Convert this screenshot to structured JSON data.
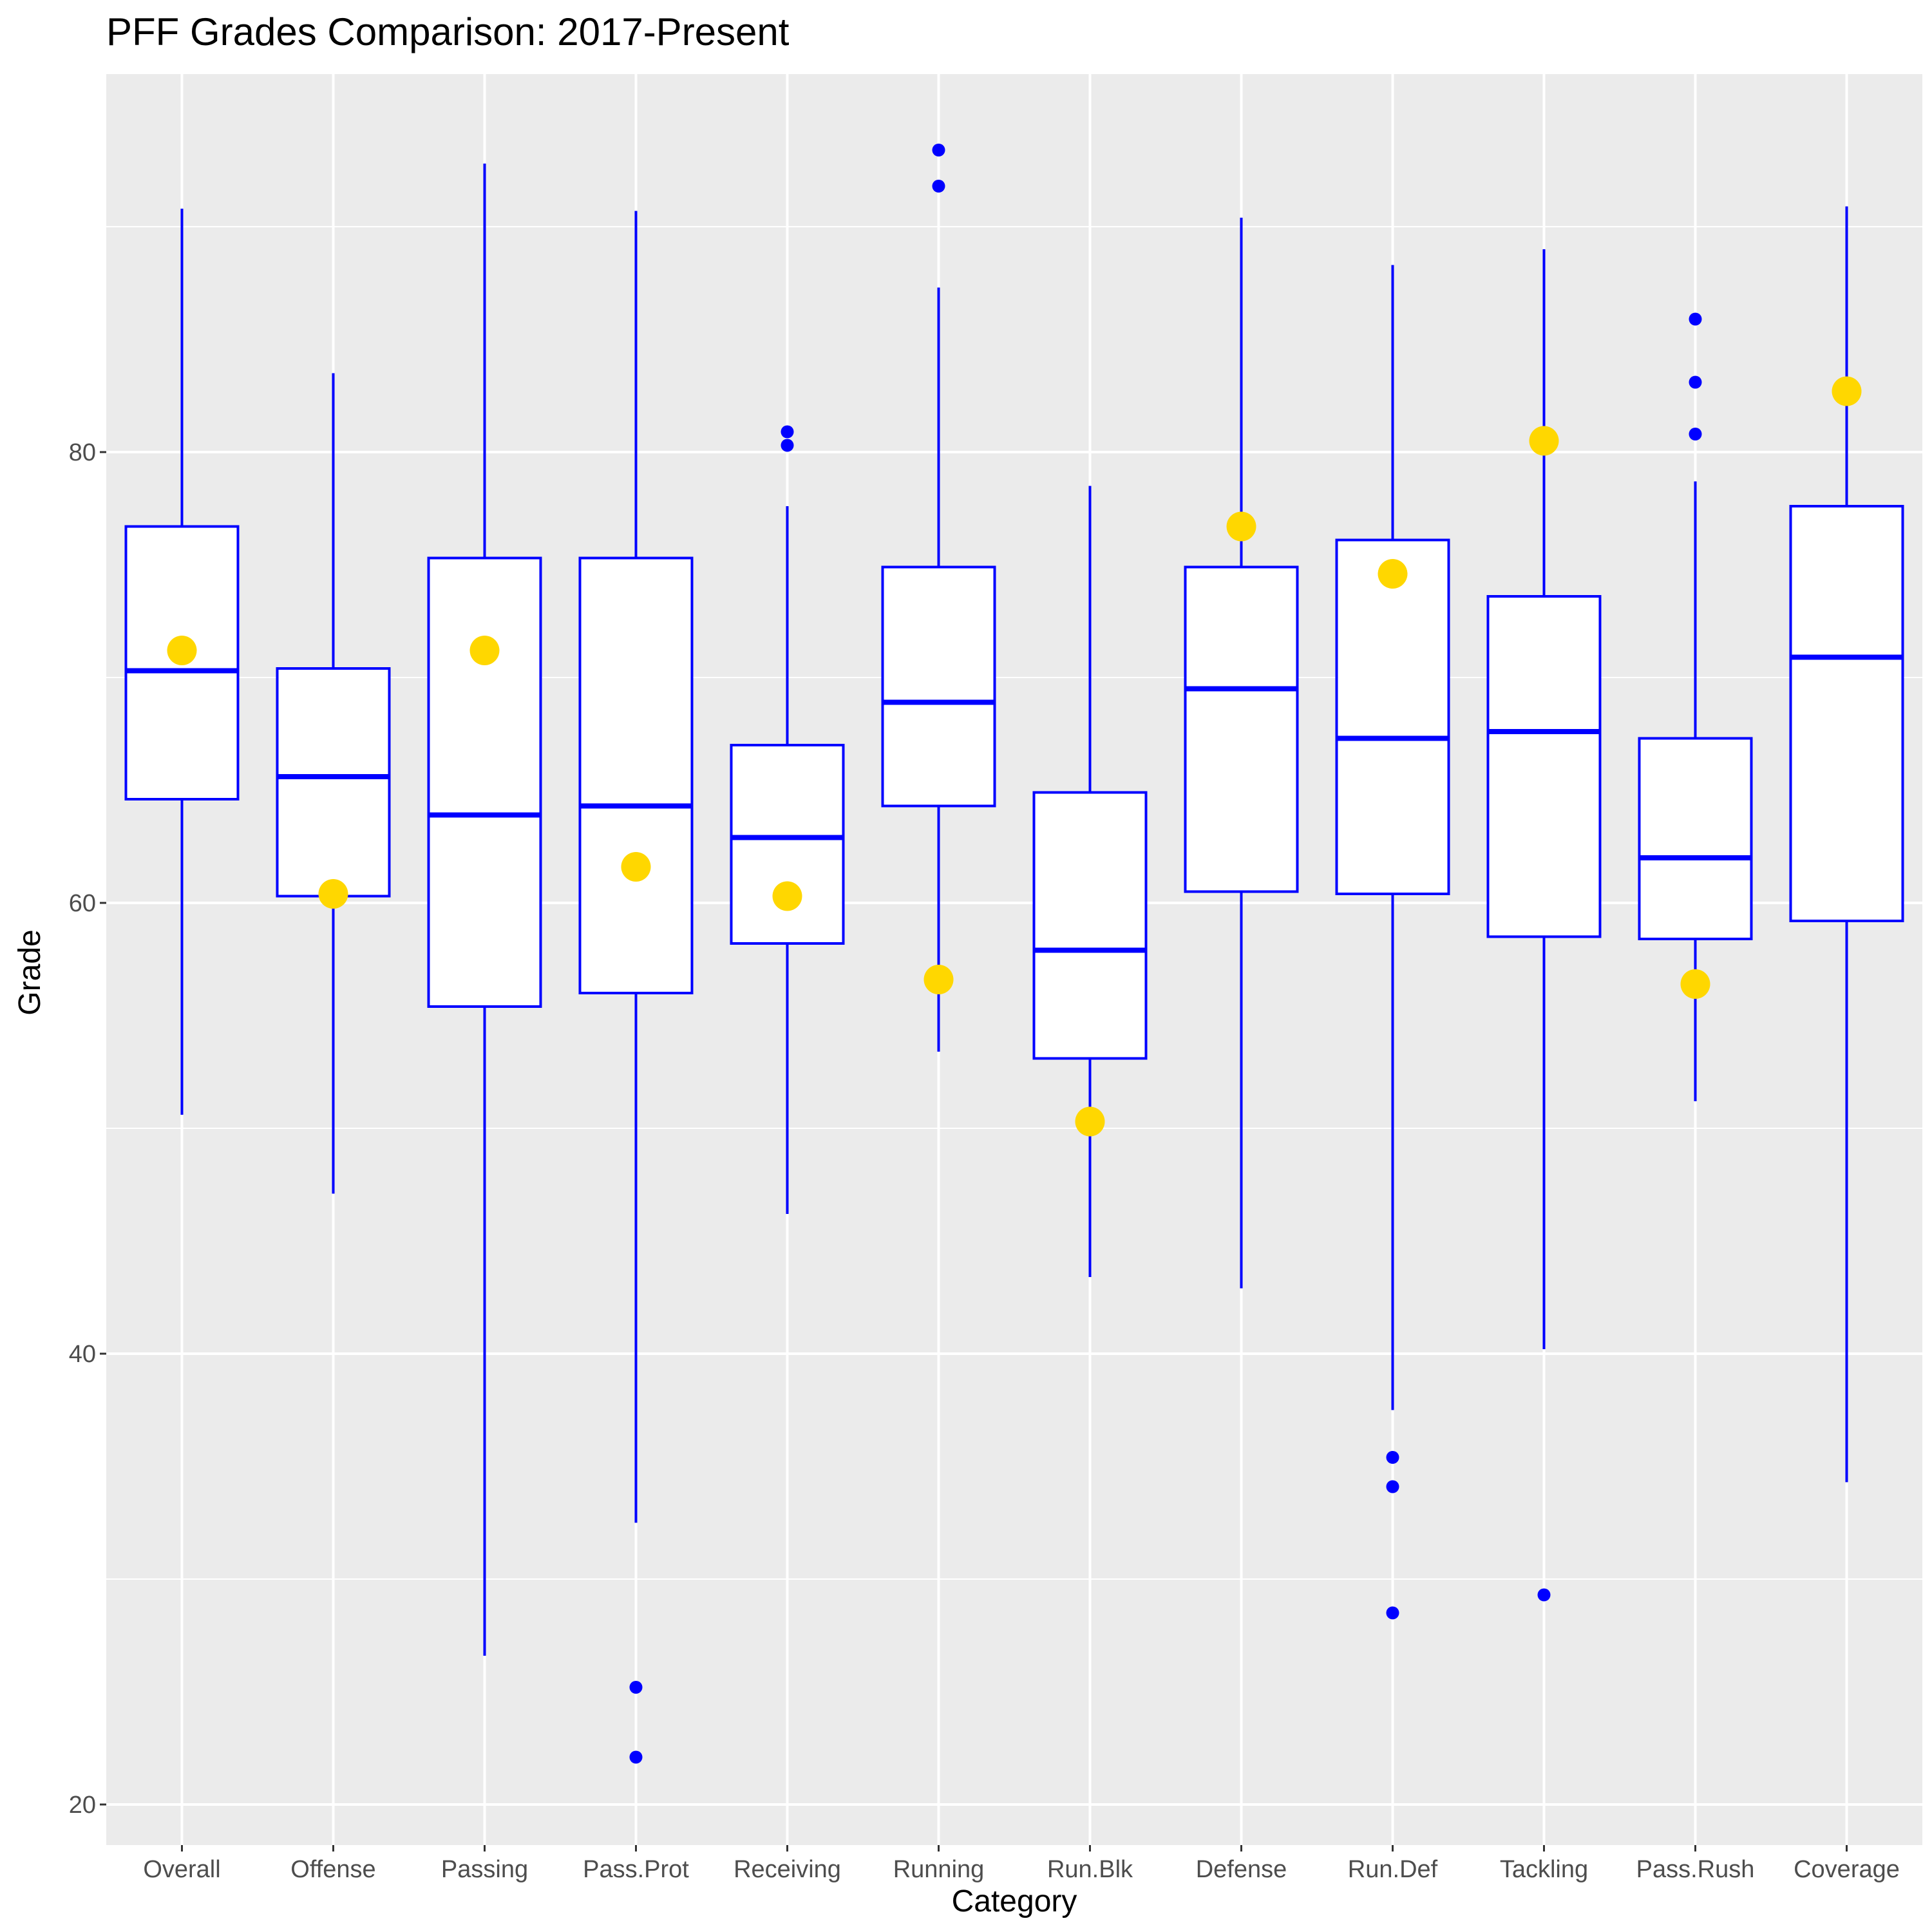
{
  "chart_data": {
    "type": "boxplot",
    "title": "PFF Grades Comparison: 2017-Present",
    "xlabel": "Category",
    "ylabel": "Grade",
    "ylim": [
      19,
      97
    ],
    "yticks": [
      20,
      40,
      60,
      80
    ],
    "grid": true,
    "colors": {
      "panel_bg": "#ebebeb",
      "grid": "#ffffff",
      "box": "#0000ff",
      "box_fill": "#ffffff",
      "highlight": "#ffd700",
      "tick_text": "#4d4d4d"
    },
    "categories": [
      "Overall",
      "Offense",
      "Passing",
      "Pass.Prot",
      "Receiving",
      "Running",
      "Run.Blk",
      "Defense",
      "Run.Def",
      "Tackling",
      "Pass.Rush",
      "Coverage"
    ],
    "boxes": [
      {
        "category": "Overall",
        "whisker_low": 50.6,
        "q1": 64.6,
        "median": 70.3,
        "q3": 76.7,
        "whisker_high": 90.8,
        "outliers": []
      },
      {
        "category": "Offense",
        "whisker_low": 47.1,
        "q1": 60.3,
        "median": 65.6,
        "q3": 70.4,
        "whisker_high": 83.5,
        "outliers": []
      },
      {
        "category": "Passing",
        "whisker_low": 26.6,
        "q1": 55.4,
        "median": 63.9,
        "q3": 75.3,
        "whisker_high": 92.8,
        "outliers": []
      },
      {
        "category": "Pass.Prot",
        "whisker_low": 32.5,
        "q1": 56.0,
        "median": 64.3,
        "q3": 75.3,
        "whisker_high": 90.7,
        "outliers": [
          25.2,
          22.1
        ]
      },
      {
        "category": "Receiving",
        "whisker_low": 46.2,
        "q1": 58.2,
        "median": 62.9,
        "q3": 67.0,
        "whisker_high": 77.6,
        "outliers": [
          80.9,
          80.3
        ]
      },
      {
        "category": "Running",
        "whisker_low": 53.4,
        "q1": 64.3,
        "median": 68.9,
        "q3": 74.9,
        "whisker_high": 87.3,
        "outliers": [
          93.4,
          91.8
        ]
      },
      {
        "category": "Run.Blk",
        "whisker_low": 43.4,
        "q1": 53.1,
        "median": 57.9,
        "q3": 64.9,
        "whisker_high": 78.5,
        "outliers": []
      },
      {
        "category": "Defense",
        "whisker_low": 42.9,
        "q1": 60.5,
        "median": 69.5,
        "q3": 74.9,
        "whisker_high": 90.4,
        "outliers": []
      },
      {
        "category": "Run.Def",
        "whisker_low": 37.5,
        "q1": 60.4,
        "median": 67.3,
        "q3": 76.1,
        "whisker_high": 88.3,
        "outliers": [
          35.4,
          34.1,
          28.5
        ]
      },
      {
        "category": "Tackling",
        "whisker_low": 40.2,
        "q1": 58.5,
        "median": 67.6,
        "q3": 73.6,
        "whisker_high": 89.0,
        "outliers": [
          29.3
        ]
      },
      {
        "category": "Pass.Rush",
        "whisker_low": 51.2,
        "q1": 58.4,
        "median": 62.0,
        "q3": 67.3,
        "whisker_high": 78.7,
        "outliers": [
          85.9,
          83.1,
          80.8
        ]
      },
      {
        "category": "Coverage",
        "whisker_low": 34.3,
        "q1": 59.2,
        "median": 70.9,
        "q3": 77.6,
        "whisker_high": 90.9,
        "outliers": []
      }
    ],
    "highlight_points": [
      {
        "category": "Overall",
        "value": 71.2
      },
      {
        "category": "Offense",
        "value": 60.4
      },
      {
        "category": "Passing",
        "value": 71.2
      },
      {
        "category": "Pass.Prot",
        "value": 61.6
      },
      {
        "category": "Receiving",
        "value": 60.3
      },
      {
        "category": "Running",
        "value": 56.6
      },
      {
        "category": "Run.Blk",
        "value": 50.3
      },
      {
        "category": "Defense",
        "value": 76.7
      },
      {
        "category": "Run.Def",
        "value": 74.6
      },
      {
        "category": "Tackling",
        "value": 80.5
      },
      {
        "category": "Pass.Rush",
        "value": 56.4
      },
      {
        "category": "Coverage",
        "value": 82.7
      }
    ]
  }
}
